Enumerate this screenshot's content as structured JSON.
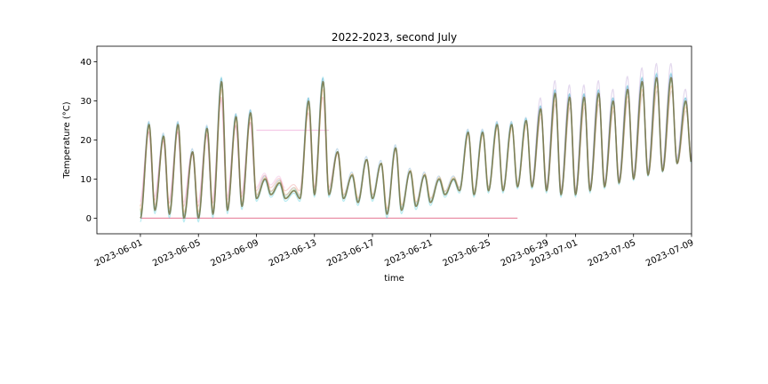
{
  "chart_data": {
    "type": "line",
    "title": "2022-2023, second July",
    "xlabel": "time",
    "ylabel": "Temperature (°C)",
    "x_range": [
      "2023-05-29",
      "2023-07-09"
    ],
    "ylim": [
      -4,
      44
    ],
    "x_ticks": [
      {
        "date": "2023-06-01",
        "label": "2023-06-01"
      },
      {
        "date": "2023-06-05",
        "label": "2023-06-05"
      },
      {
        "date": "2023-06-09",
        "label": "2023-06-09"
      },
      {
        "date": "2023-06-13",
        "label": "2023-06-13"
      },
      {
        "date": "2023-06-17",
        "label": "2023-06-17"
      },
      {
        "date": "2023-06-21",
        "label": "2023-06-21"
      },
      {
        "date": "2023-06-25",
        "label": "2023-06-25"
      },
      {
        "date": "2023-06-29",
        "label": "2023-06-29"
      },
      {
        "date": "2023-07-01",
        "label": "2023-07-01"
      },
      {
        "date": "2023-07-05",
        "label": "2023-07-05"
      },
      {
        "date": "2023-07-09",
        "label": "2023-07-09"
      }
    ],
    "y_ticks": [
      0,
      10,
      20,
      30,
      40
    ],
    "grid": false,
    "legend": "none",
    "daily_extremes": {
      "start_date": "2023-06-01",
      "days": 38,
      "max": [
        24,
        21,
        24,
        17,
        23,
        35,
        26,
        27,
        10,
        9,
        7,
        30,
        35,
        17,
        11,
        15,
        14,
        18,
        12,
        11,
        10,
        10,
        22,
        22,
        24,
        24,
        25,
        28,
        32,
        31,
        31,
        32,
        30,
        33,
        35,
        36,
        36,
        30
      ],
      "min": [
        0,
        2,
        1,
        0,
        0,
        1,
        2,
        3,
        5,
        6,
        5,
        5,
        6,
        6,
        5,
        4,
        5,
        1,
        2,
        3,
        4,
        6,
        7,
        6,
        7,
        7,
        8,
        8,
        7,
        6,
        6,
        7,
        8,
        9,
        10,
        11,
        12,
        14
      ]
    },
    "series": [
      {
        "name": "main (dark)",
        "color": "#7a7a50",
        "opacity": 0.9,
        "scale": 1.0,
        "offset": 0,
        "phase": 0,
        "start_day": 0,
        "end_day": 38
      },
      {
        "name": "teal",
        "color": "#17becf",
        "opacity": 0.3,
        "scale": 1.06,
        "offset": -1,
        "phase": 0.01,
        "start_day": 0,
        "end_day": 38
      },
      {
        "name": "green",
        "color": "#2ca02c",
        "opacity": 0.3,
        "scale": 0.97,
        "offset": 0.5,
        "phase": -0.01,
        "start_day": 0,
        "end_day": 38
      },
      {
        "name": "blue",
        "color": "#1f77b4",
        "opacity": 0.25,
        "scale": 1.0,
        "offset": 0.8,
        "phase": 0.02,
        "start_day": 0,
        "end_day": 38
      },
      {
        "name": "orange",
        "color": "#ff7f0e",
        "opacity": 0.25,
        "scale": 0.9,
        "offset": 1.5,
        "phase": -0.02,
        "start_day": 0,
        "end_day": 38
      },
      {
        "name": "red (partial)",
        "color": "#d62728",
        "opacity": 0.2,
        "scale": 0.8,
        "offset": 3,
        "phase": 0.03,
        "start_day": 0,
        "end_day": 14
      },
      {
        "name": "pink (partial)",
        "color": "#e377c2",
        "opacity": 0.25,
        "scale": 0.75,
        "offset": 4,
        "phase": 0.04,
        "start_day": 0,
        "end_day": 10
      },
      {
        "name": "purple (late)",
        "color": "#9467bd",
        "opacity": 0.25,
        "scale": 1.1,
        "offset": 0,
        "phase": 0.02,
        "start_day": 27,
        "end_day": 38
      },
      {
        "name": "brown (late)",
        "color": "#8c564b",
        "opacity": 0.2,
        "scale": 0.85,
        "offset": 2,
        "phase": -0.03,
        "start_day": 27,
        "end_day": 38
      }
    ],
    "flat_segments": [
      {
        "name": "pink zero line",
        "color": "#e377c2",
        "opacity": 0.5,
        "value": 0,
        "from": "2023-06-01",
        "to": "2023-06-27"
      },
      {
        "name": "red zero line",
        "color": "#d62728",
        "opacity": 0.35,
        "value": 0,
        "from": "2023-06-01",
        "to": "2023-06-27"
      },
      {
        "name": "pink plateau",
        "color": "#e377c2",
        "opacity": 0.4,
        "value": 22.5,
        "from": "2023-06-09",
        "to": "2023-06-14"
      }
    ]
  }
}
